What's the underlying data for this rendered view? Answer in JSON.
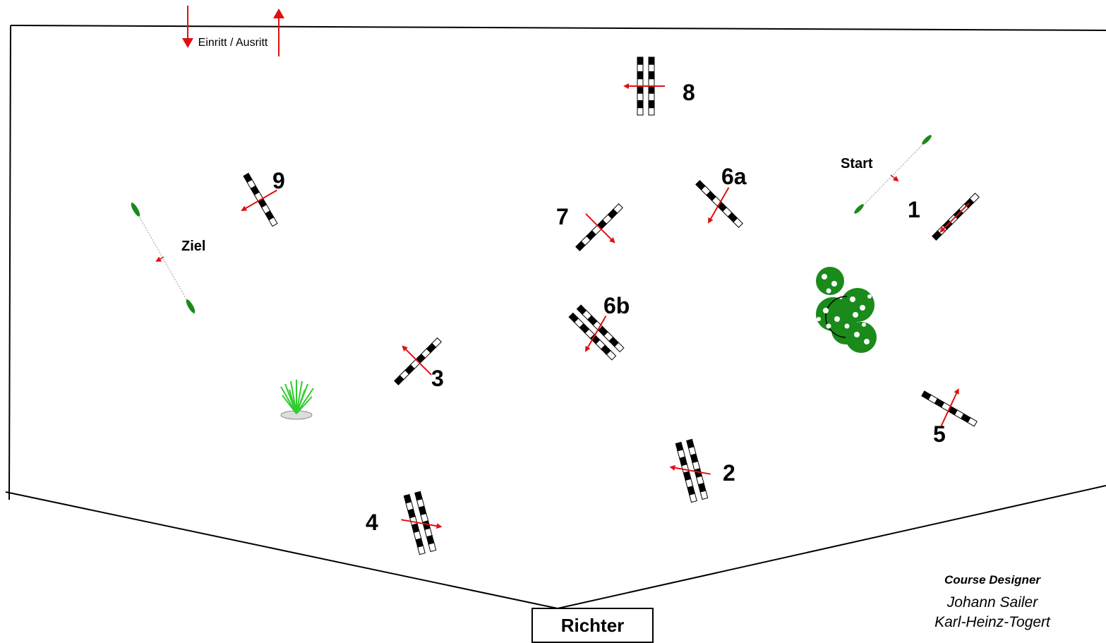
{
  "arena": {
    "entry_label": "Einritt / Ausritt",
    "judge_label": "Richter"
  },
  "labels": {
    "start": "Start",
    "finish": "Ziel"
  },
  "obstacles": [
    {
      "id": "1",
      "label": "1",
      "type": "vertical"
    },
    {
      "id": "2",
      "label": "2",
      "type": "oxer"
    },
    {
      "id": "3",
      "label": "3",
      "type": "vertical"
    },
    {
      "id": "4",
      "label": "4",
      "type": "oxer"
    },
    {
      "id": "5",
      "label": "5",
      "type": "vertical"
    },
    {
      "id": "6a",
      "label": "6a",
      "type": "vertical"
    },
    {
      "id": "6b",
      "label": "6b",
      "type": "oxer"
    },
    {
      "id": "7",
      "label": "7",
      "type": "vertical"
    },
    {
      "id": "8",
      "label": "8",
      "type": "oxer"
    },
    {
      "id": "9",
      "label": "9",
      "type": "vertical"
    }
  ],
  "credits": {
    "heading": "Course Designer",
    "names": [
      "Johann Sailer",
      "Karl-Heinz-Togert"
    ]
  },
  "colors": {
    "arrow": "#e01010",
    "flag_green": "#1a8a1a",
    "pole_dark": "#000000",
    "pole_light": "#ffffff"
  }
}
